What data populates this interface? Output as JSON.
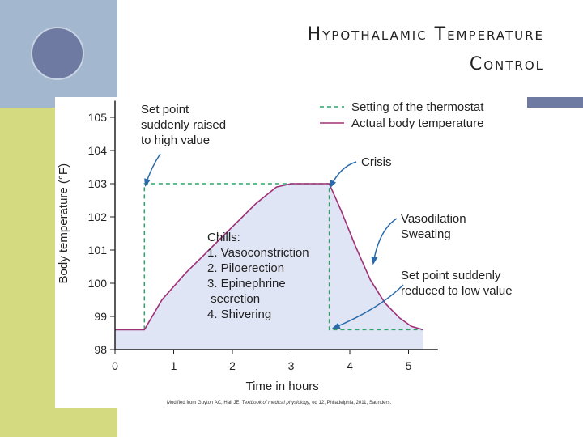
{
  "slide": {
    "title_line1": "Hypothalamic Temperature",
    "title_line2": "Control",
    "colors": {
      "top_bar": "#6e7aa2",
      "top_left_block": "#a3b8cf",
      "left_bar": "#d3da7f",
      "area_fill": "#dfe5f4",
      "actual_line": "#a0307a",
      "setpoint_line": "#2aa66a",
      "arrow": "#2a6aa8"
    }
  },
  "chart_data": {
    "type": "line",
    "title": "",
    "xlabel": "Time in hours",
    "ylabel": "Body temperature (°F)",
    "xlim": [
      0,
      5.5
    ],
    "ylim": [
      98,
      105.5
    ],
    "x_ticks": [
      "0",
      "1",
      "2",
      "3",
      "4",
      "5"
    ],
    "y_ticks": [
      "98",
      "99",
      "100",
      "101",
      "102",
      "103",
      "104",
      "105"
    ],
    "legend": {
      "placement": "top-right",
      "entries": [
        "Setting of the thermostat",
        "Actual body temperature"
      ]
    },
    "series": [
      {
        "name": "Setting of the thermostat",
        "style": "dashed",
        "x": [
          0.5,
          0.5,
          3.65,
          3.65,
          5.25
        ],
        "y": [
          98.6,
          103,
          103,
          98.6,
          98.6
        ]
      },
      {
        "name": "Actual body temperature",
        "style": "solid",
        "x": [
          0,
          0.5,
          0.8,
          1.2,
          1.6,
          2.0,
          2.4,
          2.75,
          3.0,
          3.65,
          3.85,
          4.1,
          4.35,
          4.6,
          4.85,
          5.05,
          5.25
        ],
        "y": [
          98.6,
          98.6,
          99.5,
          100.3,
          101.0,
          101.7,
          102.4,
          102.9,
          103.0,
          103.0,
          102.2,
          101.1,
          100.1,
          99.4,
          98.95,
          98.7,
          98.6
        ]
      }
    ],
    "annotations": [
      {
        "name": "setpoint-raised",
        "lines": [
          "Set point",
          "suddenly raised",
          "to high value"
        ]
      },
      {
        "name": "crisis",
        "lines": [
          "Crisis"
        ]
      },
      {
        "name": "vasodilation",
        "lines": [
          "Vasodilation",
          "Sweating"
        ]
      },
      {
        "name": "setpoint-reduced",
        "lines": [
          "Set point suddenly",
          "reduced to low value"
        ]
      },
      {
        "name": "chills",
        "lines": [
          "Chills:",
          "1. Vasoconstriction",
          "2. Piloerection",
          "3. Epinephrine",
          "    secretion",
          "4. Shivering"
        ]
      }
    ],
    "credit_pre": "Modified from Guyton AC, Hall JE: ",
    "credit_italic": "Textbook of medical physiology",
    "credit_post": ", ed 12, Philadelphia, 2011, Saunders."
  }
}
